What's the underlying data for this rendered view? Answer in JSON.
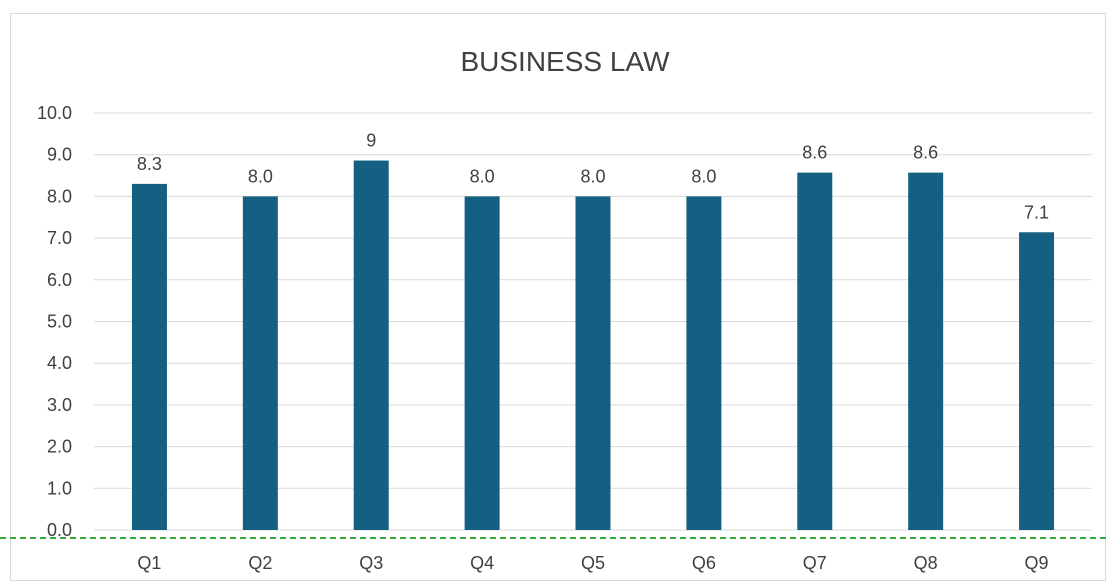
{
  "chart_data": {
    "type": "bar",
    "title": "BUSINESS LAW",
    "categories": [
      "Q1",
      "Q2",
      "Q3",
      "Q4",
      "Q5",
      "Q6",
      "Q7",
      "Q8",
      "Q9"
    ],
    "values": [
      8.3,
      8.0,
      8.86,
      8.0,
      8.0,
      8.0,
      8.57,
      8.57,
      7.14
    ],
    "data_labels": [
      "8.3",
      "8.0",
      "9",
      "8.0",
      "8.0",
      "8.0",
      "8.6",
      "8.6",
      "7.1"
    ],
    "y_ticks": [
      "0.0",
      "1.0",
      "2.0",
      "3.0",
      "4.0",
      "5.0",
      "6.0",
      "7.0",
      "8.0",
      "9.0",
      "10.0"
    ],
    "ylim": [
      0,
      10
    ],
    "grid": true,
    "legend": "none",
    "colors": {
      "bar": "#156082",
      "baseline": "#3aa53a",
      "grid": "#d9d9d9",
      "text": "#404040"
    }
  }
}
